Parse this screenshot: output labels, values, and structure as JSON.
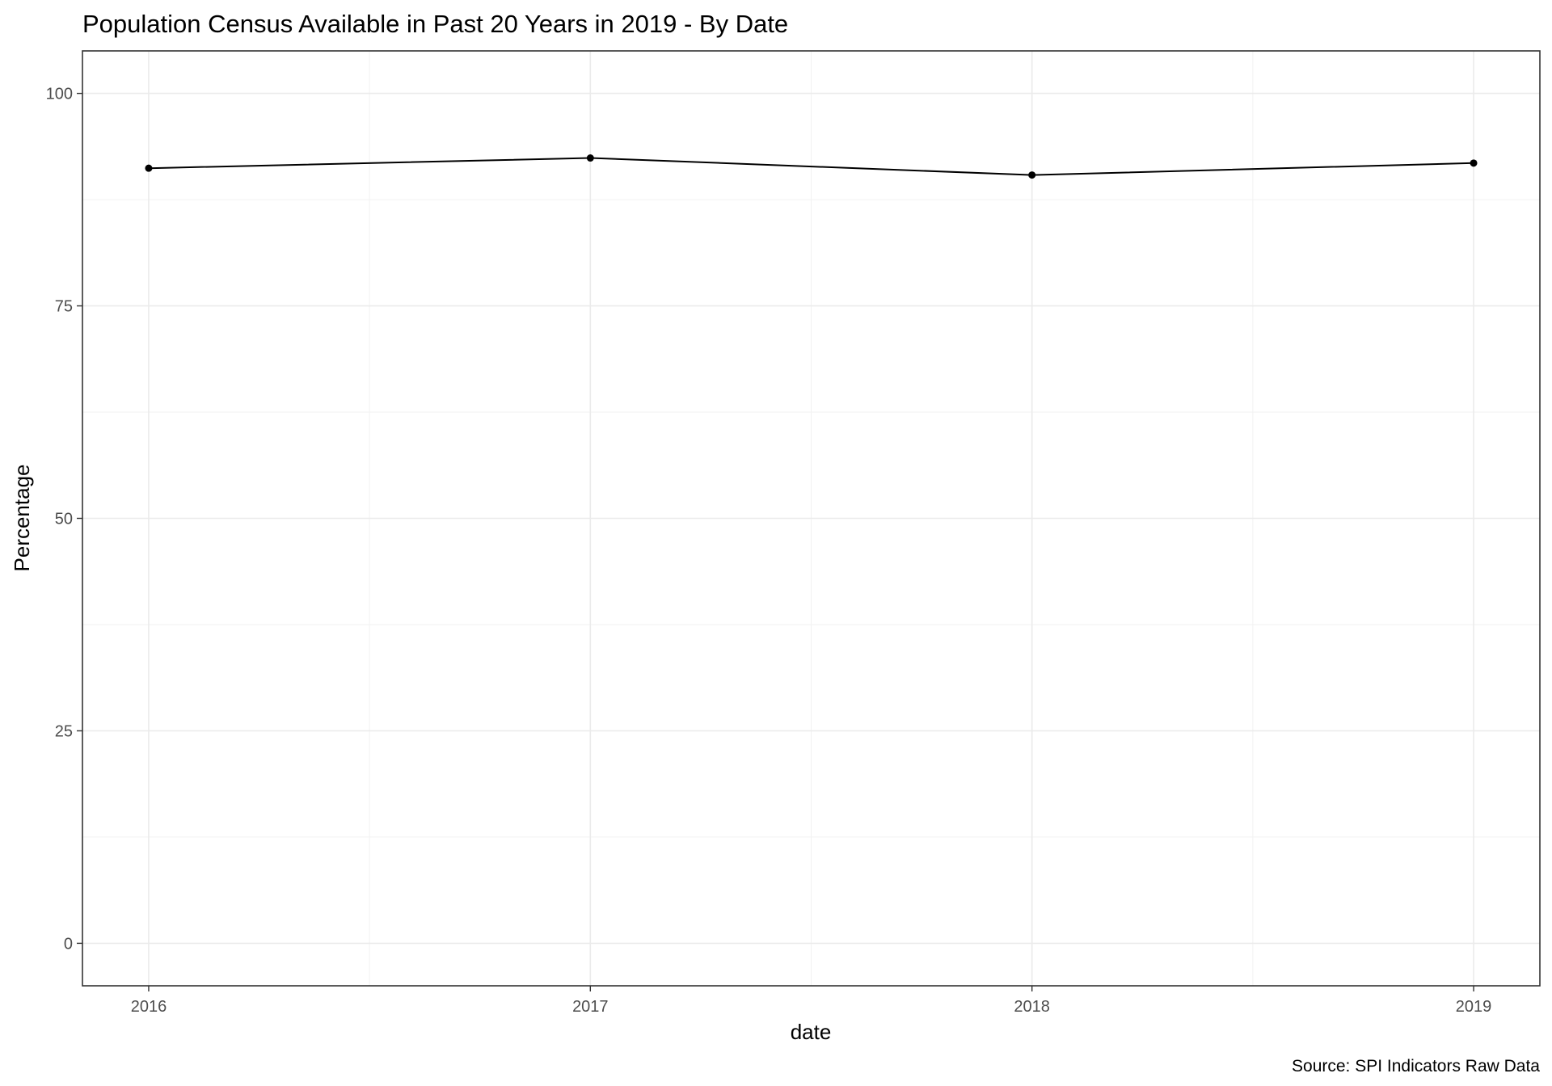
{
  "chart_data": {
    "type": "line",
    "title": "Population Census Available in Past 20 Years in 2019 - By Date",
    "xlabel": "date",
    "ylabel": "Percentage",
    "caption": "Source: SPI Indicators Raw Data",
    "x": [
      "2016",
      "2017",
      "2018",
      "2019"
    ],
    "x_numeric": [
      2016,
      2017,
      2018,
      2019
    ],
    "xlim": [
      2015.85,
      2019.15
    ],
    "ylim": [
      -5,
      105
    ],
    "y_ticks": [
      0,
      25,
      50,
      75,
      100
    ],
    "y_tick_labels": [
      "0",
      "25",
      "50",
      "75",
      "100"
    ],
    "x_ticks": [
      2016,
      2017,
      2018,
      2019
    ],
    "x_tick_labels": [
      "2016",
      "2017",
      "2018",
      "2019"
    ],
    "series": [
      {
        "values": [
          91.2,
          92.4,
          90.4,
          91.8
        ]
      }
    ],
    "grid": true,
    "legend": "none",
    "colors": {
      "line": "#000000",
      "grid": "#ebebeb",
      "border": "#333333"
    }
  }
}
